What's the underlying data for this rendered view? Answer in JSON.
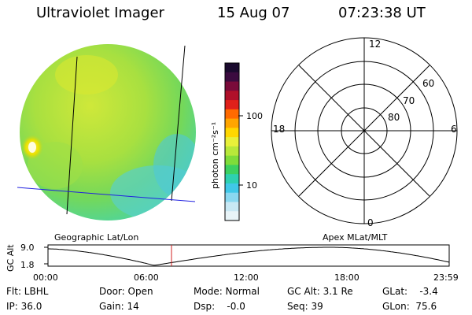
{
  "header": {
    "instrument": "Ultraviolet Imager",
    "date": "15 Aug 07",
    "time": "07:23:38 UT"
  },
  "colorbar": {
    "unit_label": "photon cm⁻²s⁻¹",
    "ticks": [
      "100",
      "10"
    ],
    "colors": [
      "#1a0a2e",
      "#3b0b3f",
      "#7a0a3a",
      "#b0102a",
      "#e0201a",
      "#ff6a00",
      "#ffa500",
      "#ffd700",
      "#e8f03a",
      "#b8e83a",
      "#7fdc3a",
      "#3cd060",
      "#2ed0b0",
      "#40c8e8",
      "#8ad8f0",
      "#c8e8f4",
      "#e8f4f8"
    ]
  },
  "polar": {
    "mlt_labels": {
      "top": "12",
      "left": "18",
      "right": "6",
      "bottom": "0"
    },
    "lat_labels": [
      "60",
      "70",
      "80"
    ]
  },
  "timeline": {
    "left_title": "Geographic Lat/Lon",
    "right_title": "Apex MLat/MLT",
    "axis_label": "GC Alt",
    "y_ticks": [
      "9.0",
      "1.8"
    ],
    "x_ticks": [
      "00:00",
      "06:00",
      "12:00",
      "18:00",
      "23:59"
    ],
    "cursor_color": "#d02020"
  },
  "footer": {
    "flt": "Flt: LBHL",
    "ip": "IP: 36.0",
    "door": "Door: Open",
    "gain": "Gain: 14",
    "mode": "Mode: Normal",
    "dsp": "Dsp:    -0.0",
    "gcalt": "GC Alt: 3.1 Re",
    "seq": "Seq: 39",
    "glat": "GLat:    -3.4",
    "glon": "GLon:  75.6"
  }
}
